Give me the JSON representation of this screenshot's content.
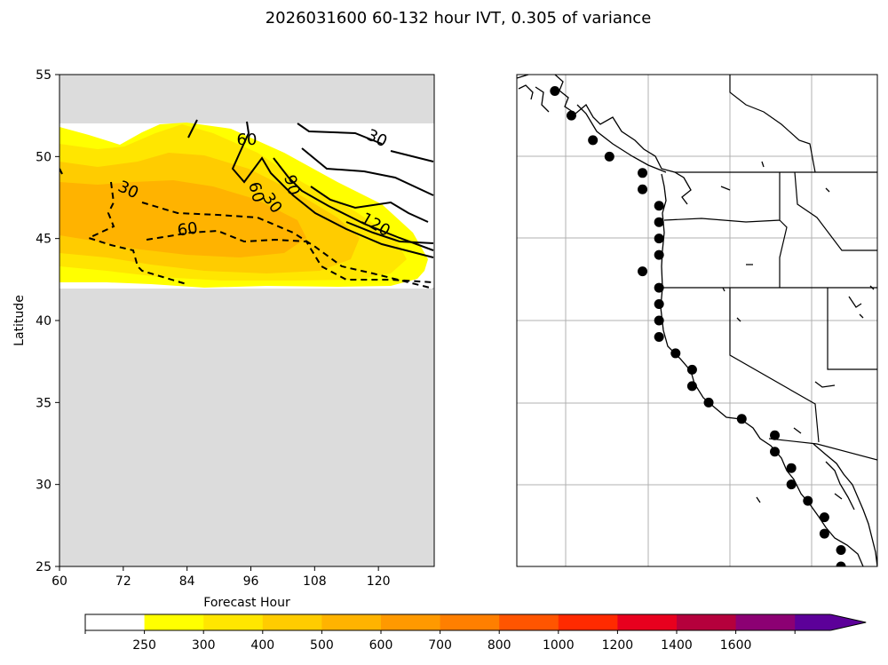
{
  "title": "2026031600 60-132 hour IVT, 0.305 of variance",
  "left_panel": {
    "ylabel": "Latitude",
    "xlabel": "Forecast Hour",
    "xlim": [
      60,
      130.5
    ],
    "ylim": [
      25,
      55
    ],
    "xticks": [
      "60",
      "72",
      "84",
      "96",
      "108",
      "120"
    ],
    "yticks": [
      "25",
      "30",
      "35",
      "40",
      "45",
      "50",
      "55"
    ],
    "contour_labels": [
      "60",
      "30",
      "60",
      "90",
      "30",
      "120",
      "30",
      "60"
    ]
  },
  "colorbar": {
    "ticks": [
      "250",
      "300",
      "400",
      "500",
      "600",
      "700",
      "800",
      "1000",
      "1200",
      "1400",
      "1600"
    ],
    "colors": [
      "#ffffff",
      "#ffff00",
      "#ffe600",
      "#ffcc00",
      "#ffb300",
      "#ff9900",
      "#ff7f00",
      "#ff5500",
      "#ff2a00",
      "#e8001e",
      "#b5003c",
      "#8c0073",
      "#5c0099"
    ]
  },
  "chart_data": {
    "type": "heatmap",
    "title": "2026031600 60-132 hour IVT, 0.305 of variance",
    "xlabel": "Forecast Hour",
    "ylabel": "Latitude",
    "xlim": [
      60,
      130.5
    ],
    "ylim": [
      25,
      55
    ],
    "series": [
      {
        "name": "IVT 250-300",
        "values": [
          [
            60,
            52
          ],
          [
            88,
            52.5
          ],
          [
            124,
            45
          ],
          [
            129,
            43
          ],
          [
            120,
            42
          ],
          [
            60,
            42
          ]
        ]
      },
      {
        "name": "IVT 300-400",
        "values": [
          [
            60,
            50
          ],
          [
            86,
            52
          ],
          [
            118,
            44
          ],
          [
            122,
            42.5
          ],
          [
            60,
            43
          ]
        ]
      },
      {
        "name": "IVT 400-500",
        "values": [
          [
            60,
            48
          ],
          [
            84,
            49
          ],
          [
            112,
            43.5
          ],
          [
            60,
            44
          ]
        ]
      }
    ],
    "contour_levels": [
      -60,
      -30,
      30,
      60,
      90,
      120
    ],
    "points": [
      {
        "lat": 54.0,
        "lon": -130.3
      },
      {
        "lat": 52.5,
        "lon": -129.3
      },
      {
        "lat": 51.0,
        "lon": -128.0
      },
      {
        "lat": 50.0,
        "lon": -127.0
      },
      {
        "lat": 49.0,
        "lon": -125.0
      },
      {
        "lat": 48.0,
        "lon": -125.0
      },
      {
        "lat": 47.0,
        "lon": -124.0
      },
      {
        "lat": 46.0,
        "lon": -124.0
      },
      {
        "lat": 45.0,
        "lon": -124.0
      },
      {
        "lat": 44.0,
        "lon": -124.0
      },
      {
        "lat": 43.0,
        "lon": -125.0
      },
      {
        "lat": 42.0,
        "lon": -124.0
      },
      {
        "lat": 41.0,
        "lon": -124.0
      },
      {
        "lat": 40.0,
        "lon": -124.0
      },
      {
        "lat": 39.0,
        "lon": -124.0
      },
      {
        "lat": 38.0,
        "lon": -123.0
      },
      {
        "lat": 37.0,
        "lon": -122.0
      },
      {
        "lat": 36.0,
        "lon": -122.0
      },
      {
        "lat": 35.0,
        "lon": -121.0
      },
      {
        "lat": 34.0,
        "lon": -119.0
      },
      {
        "lat": 33.0,
        "lon": -117.0
      },
      {
        "lat": 32.0,
        "lon": -117.0
      },
      {
        "lat": 31.0,
        "lon": -116.0
      },
      {
        "lat": 30.0,
        "lon": -116.0
      },
      {
        "lat": 29.0,
        "lon": -115.0
      },
      {
        "lat": 28.0,
        "lon": -114.0
      },
      {
        "lat": 27.0,
        "lon": -114.0
      },
      {
        "lat": 26.0,
        "lon": -113.0
      },
      {
        "lat": 25.0,
        "lon": -113.0
      }
    ]
  }
}
